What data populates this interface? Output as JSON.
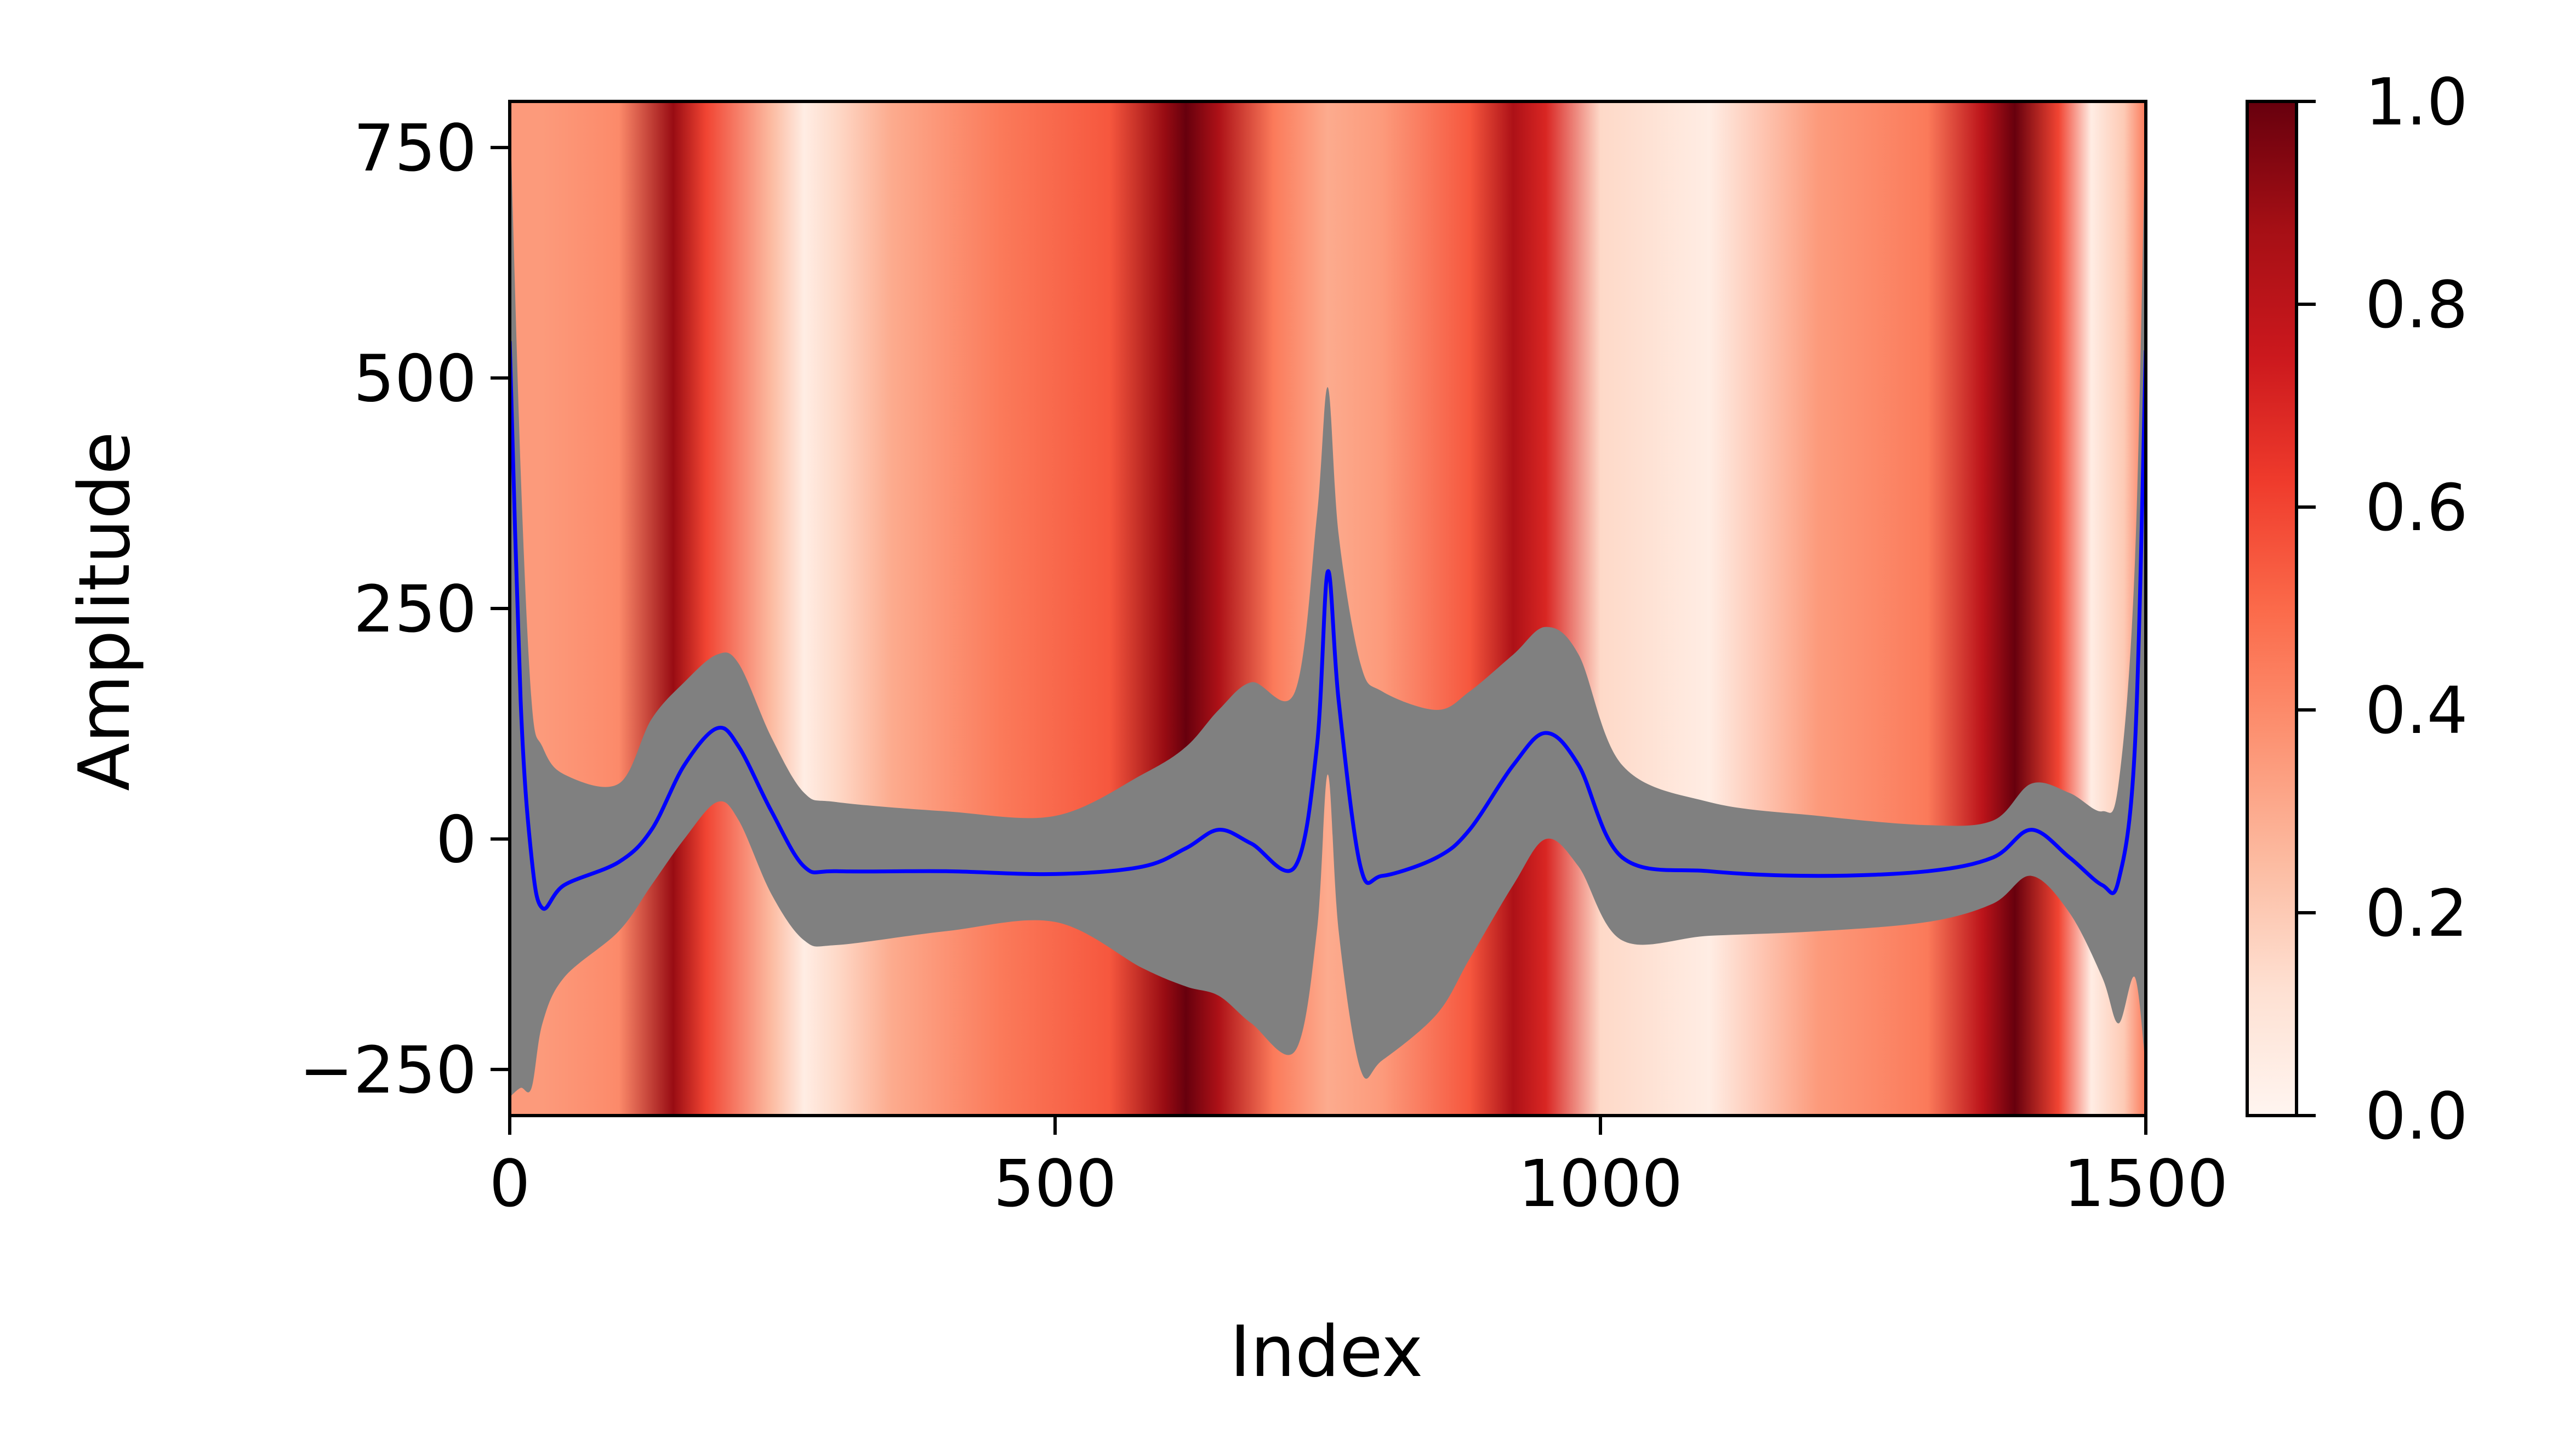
{
  "chart_data": {
    "type": "line",
    "title": "",
    "xlabel": "Index",
    "ylabel": "Amplitude",
    "xlim": [
      0,
      1500
    ],
    "ylim": [
      -300,
      800
    ],
    "xticks": [
      0,
      500,
      1000,
      1500
    ],
    "yticks": [
      -250,
      0,
      250,
      500,
      750
    ],
    "xtick_labels": [
      "0",
      "500",
      "1000",
      "1500"
    ],
    "ytick_labels": [
      "−250",
      "0",
      "250",
      "500",
      "750"
    ],
    "grid": false,
    "legend": "none",
    "colors": {
      "mean_line": "#0000ff",
      "band": "#808080",
      "colormap": "Reds"
    },
    "mean_line": {
      "x": [
        0,
        10,
        20,
        30,
        50,
        100,
        130,
        160,
        190,
        210,
        240,
        270,
        300,
        400,
        500,
        580,
        620,
        650,
        680,
        720,
        740,
        750,
        760,
        780,
        800,
        850,
        880,
        920,
        950,
        980,
        1020,
        1100,
        1200,
        1300,
        1360,
        1395,
        1430,
        1460,
        1475,
        1490,
        1500
      ],
      "y": [
        540,
        150,
        -20,
        -75,
        -50,
        -25,
        10,
        80,
        120,
        100,
        30,
        -30,
        -35,
        -35,
        -38,
        -30,
        -10,
        10,
        -5,
        -30,
        100,
        290,
        150,
        -30,
        -40,
        -20,
        10,
        80,
        115,
        80,
        -20,
        -35,
        -40,
        -35,
        -20,
        10,
        -20,
        -50,
        -45,
        100,
        530
      ]
    },
    "band_upper": {
      "x": [
        0,
        10,
        20,
        30,
        50,
        100,
        130,
        160,
        190,
        210,
        240,
        270,
        300,
        400,
        500,
        580,
        620,
        650,
        680,
        720,
        740,
        750,
        760,
        780,
        800,
        850,
        880,
        920,
        950,
        980,
        1020,
        1100,
        1200,
        1300,
        1360,
        1395,
        1430,
        1460,
        1475,
        1490,
        1500
      ],
      "y": [
        800,
        400,
        150,
        100,
        70,
        60,
        130,
        170,
        200,
        190,
        110,
        50,
        40,
        30,
        25,
        70,
        100,
        140,
        170,
        160,
        350,
        490,
        330,
        190,
        160,
        140,
        160,
        200,
        230,
        200,
        80,
        40,
        25,
        15,
        20,
        60,
        50,
        30,
        60,
        300,
        800
      ]
    },
    "band_lower": {
      "x": [
        0,
        10,
        20,
        30,
        50,
        100,
        130,
        160,
        190,
        210,
        240,
        270,
        300,
        400,
        500,
        580,
        620,
        650,
        680,
        720,
        740,
        750,
        760,
        780,
        800,
        850,
        880,
        920,
        950,
        980,
        1020,
        1100,
        1200,
        1300,
        1360,
        1395,
        1430,
        1460,
        1475,
        1490,
        1500
      ],
      "y": [
        -280,
        -270,
        -270,
        -200,
        -150,
        -100,
        -50,
        0,
        40,
        20,
        -60,
        -110,
        -115,
        -100,
        -90,
        -140,
        -160,
        -170,
        -200,
        -230,
        -100,
        70,
        -100,
        -250,
        -240,
        -190,
        -130,
        -50,
        0,
        -30,
        -110,
        -105,
        -100,
        -90,
        -70,
        -40,
        -80,
        -150,
        -200,
        -150,
        -250
      ]
    },
    "background_intensity": {
      "x": [
        0,
        30,
        100,
        150,
        180,
        240,
        270,
        300,
        350,
        450,
        550,
        600,
        620,
        650,
        700,
        750,
        800,
        880,
        920,
        950,
        1000,
        1100,
        1200,
        1300,
        1350,
        1380,
        1420,
        1450,
        1480,
        1500
      ],
      "value": [
        0.35,
        0.35,
        0.4,
        0.9,
        0.6,
        0.25,
        0.05,
        0.15,
        0.3,
        0.45,
        0.55,
        0.9,
        1.0,
        0.85,
        0.45,
        0.3,
        0.35,
        0.55,
        0.85,
        0.7,
        0.15,
        0.05,
        0.35,
        0.45,
        0.8,
        1.0,
        0.6,
        0.05,
        0.2,
        0.45
      ]
    },
    "colorbar": {
      "range": [
        0,
        1
      ],
      "ticks": [
        0.0,
        0.2,
        0.4,
        0.6,
        0.8,
        1.0
      ],
      "tick_labels": [
        "0.0",
        "0.2",
        "0.4",
        "0.6",
        "0.8",
        "1.0"
      ]
    }
  }
}
